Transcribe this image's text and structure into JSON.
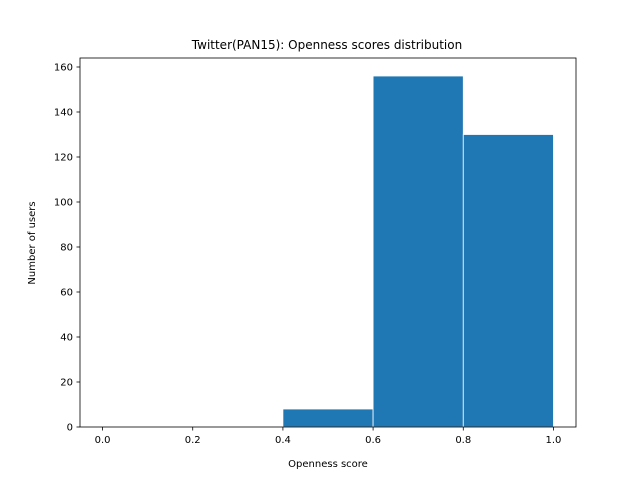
{
  "chart_data": {
    "type": "bar",
    "title": "Twitter(PAN15): Openness scores distribution",
    "xlabel": "Openness score",
    "ylabel": "Number of users",
    "bins": [
      {
        "x0": 0.0,
        "x1": 0.2,
        "count": 0
      },
      {
        "x0": 0.2,
        "x1": 0.4,
        "count": 0
      },
      {
        "x0": 0.4,
        "x1": 0.6,
        "count": 8
      },
      {
        "x0": 0.6,
        "x1": 0.8,
        "count": 156
      },
      {
        "x0": 0.8,
        "x1": 1.0,
        "count": 130
      }
    ],
    "xlim": [
      -0.05,
      1.05
    ],
    "ylim": [
      0,
      164
    ],
    "xticks": [
      "0.0",
      "0.2",
      "0.4",
      "0.6",
      "0.8",
      "1.0"
    ],
    "yticks": [
      "0",
      "20",
      "40",
      "60",
      "80",
      "100",
      "120",
      "140",
      "160"
    ],
    "bar_color": "#1f77b4",
    "edge_color": "#ffffff",
    "grid": false
  }
}
